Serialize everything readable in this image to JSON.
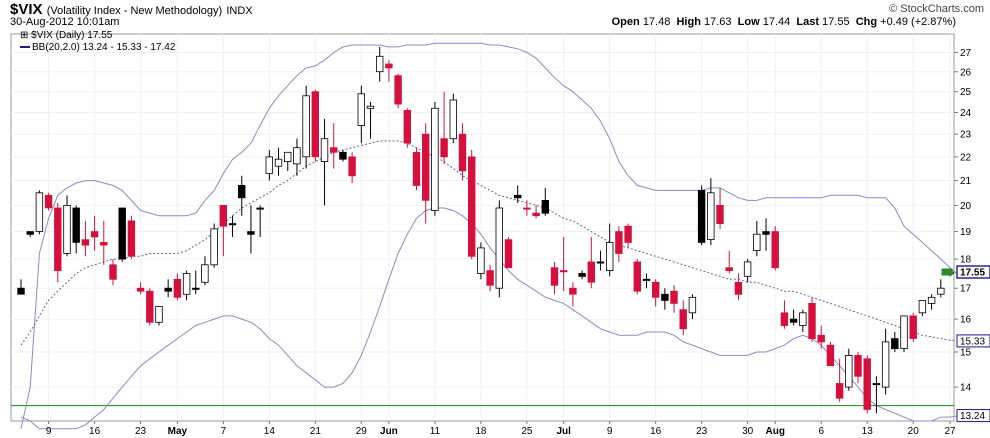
{
  "header": {
    "symbol": "$VIX",
    "name": "(Volatility Index - New Methodology)",
    "exchange": "INDX",
    "timestamp": "30-Aug-2012 10:01am",
    "watermark": "© StockCharts.com",
    "open_label": "Open",
    "open": "17.48",
    "high_label": "High",
    "high": "17.63",
    "low_label": "Low",
    "low": "17.44",
    "last_label": "Last",
    "last": "17.55",
    "chg_label": "Chg",
    "chg": "+0.49 (+2.87%)"
  },
  "legend": {
    "line1": "$VIX (Daily) 17.55",
    "line2": "BB(20,2.0) 13.24 - 15.33 - 17.42"
  },
  "chart_data": {
    "type": "candlestick",
    "yscale": "log",
    "ylim": [
      13.1,
      28.0
    ],
    "yticks": [
      14,
      15,
      16,
      17,
      18,
      19,
      20,
      21,
      22,
      23,
      24,
      25,
      26,
      27
    ],
    "xlabels": [
      "9",
      "16",
      "23",
      "May",
      "7",
      "14",
      "21",
      "29",
      "Jun",
      "11",
      "18",
      "25",
      "Jul",
      "9",
      "16",
      "23",
      "30",
      "Aug",
      "6",
      "13",
      "20",
      "27"
    ],
    "xlabels_bold": [
      "May",
      "Jun",
      "Jul",
      "Aug"
    ],
    "last_value_box": "17.55",
    "bb_mid_box": "15.33",
    "bb_low_box": "13.24",
    "colors": {
      "up_fill": "#ffffff",
      "down_fill": "#d5103c",
      "black_fill": "#000000",
      "band": "#8a8ac8",
      "mid": "#6060b0",
      "hline": "#118811",
      "box": "#1a1a8c"
    },
    "horizontal_line": 13.5,
    "candles": [
      {
        "o": 17.0,
        "h": 17.3,
        "l": 16.8,
        "c": 16.8,
        "k": "b"
      },
      {
        "o": 18.9,
        "h": 19.0,
        "l": 18.8,
        "c": 19.0,
        "k": "b"
      },
      {
        "o": 19.0,
        "h": 20.6,
        "l": 18.9,
        "c": 20.5,
        "k": "u"
      },
      {
        "o": 20.4,
        "h": 20.5,
        "l": 19.8,
        "c": 19.9,
        "k": "d"
      },
      {
        "o": 19.9,
        "h": 20.1,
        "l": 17.2,
        "c": 17.6,
        "k": "d"
      },
      {
        "o": 18.2,
        "h": 20.4,
        "l": 18.1,
        "c": 20.0,
        "k": "u"
      },
      {
        "o": 19.9,
        "h": 20.0,
        "l": 18.2,
        "c": 18.6,
        "k": "b"
      },
      {
        "o": 18.7,
        "h": 19.4,
        "l": 18.1,
        "c": 18.5,
        "k": "d"
      },
      {
        "o": 19.0,
        "h": 19.6,
        "l": 18.3,
        "c": 18.8,
        "k": "d"
      },
      {
        "o": 18.6,
        "h": 19.4,
        "l": 17.8,
        "c": 18.5,
        "k": "d"
      },
      {
        "o": 17.8,
        "h": 18.0,
        "l": 17.1,
        "c": 17.3,
        "k": "d"
      },
      {
        "o": 18.0,
        "h": 19.9,
        "l": 17.9,
        "c": 19.9,
        "k": "b"
      },
      {
        "o": 19.4,
        "h": 19.6,
        "l": 18.0,
        "c": 18.1,
        "k": "d"
      },
      {
        "o": 17.0,
        "h": 17.2,
        "l": 16.8,
        "c": 16.9,
        "k": "d"
      },
      {
        "o": 16.9,
        "h": 17.0,
        "l": 15.8,
        "c": 15.9,
        "k": "d"
      },
      {
        "o": 15.9,
        "h": 16.4,
        "l": 15.8,
        "c": 16.4,
        "k": "u"
      },
      {
        "o": 17.0,
        "h": 17.3,
        "l": 16.7,
        "c": 16.9,
        "k": "b"
      },
      {
        "o": 17.3,
        "h": 17.5,
        "l": 16.6,
        "c": 16.7,
        "k": "d"
      },
      {
        "o": 16.8,
        "h": 17.6,
        "l": 16.6,
        "c": 17.5,
        "k": "u"
      },
      {
        "o": 17.0,
        "h": 17.6,
        "l": 16.8,
        "c": 17.0,
        "k": "b"
      },
      {
        "o": 17.2,
        "h": 18.1,
        "l": 17.1,
        "c": 17.8,
        "k": "u"
      },
      {
        "o": 17.8,
        "h": 19.3,
        "l": 17.7,
        "c": 19.1,
        "k": "u"
      },
      {
        "o": 19.2,
        "h": 20.0,
        "l": 18.1,
        "c": 20.0,
        "k": "d"
      },
      {
        "o": 19.3,
        "h": 19.6,
        "l": 18.8,
        "c": 19.3,
        "k": "b"
      },
      {
        "o": 20.3,
        "h": 21.2,
        "l": 19.6,
        "c": 20.8,
        "k": "b"
      },
      {
        "o": 19.0,
        "h": 20.0,
        "l": 18.2,
        "c": 18.9,
        "k": "b"
      },
      {
        "o": 19.9,
        "h": 20.0,
        "l": 18.8,
        "c": 19.9,
        "k": "b"
      },
      {
        "o": 21.3,
        "h": 22.3,
        "l": 21.0,
        "c": 22.0,
        "k": "u"
      },
      {
        "o": 21.6,
        "h": 22.4,
        "l": 21.2,
        "c": 21.9,
        "k": "u"
      },
      {
        "o": 21.8,
        "h": 22.2,
        "l": 21.4,
        "c": 22.2,
        "k": "u"
      },
      {
        "o": 21.7,
        "h": 22.8,
        "l": 21.2,
        "c": 22.4,
        "k": "u"
      },
      {
        "o": 22.0,
        "h": 25.3,
        "l": 21.5,
        "c": 24.8,
        "k": "u"
      },
      {
        "o": 25.0,
        "h": 25.1,
        "l": 21.8,
        "c": 22.0,
        "k": "d"
      },
      {
        "o": 22.8,
        "h": 23.7,
        "l": 20.0,
        "c": 21.8,
        "k": "u"
      },
      {
        "o": 22.4,
        "h": 23.5,
        "l": 21.5,
        "c": 22.2,
        "k": "d"
      },
      {
        "o": 22.2,
        "h": 22.3,
        "l": 21.8,
        "c": 21.9,
        "k": "b"
      },
      {
        "o": 22.0,
        "h": 22.2,
        "l": 20.9,
        "c": 21.2,
        "k": "d"
      },
      {
        "o": 23.4,
        "h": 25.3,
        "l": 22.6,
        "c": 24.9,
        "k": "u"
      },
      {
        "o": 24.3,
        "h": 24.5,
        "l": 22.8,
        "c": 24.2,
        "k": "u"
      },
      {
        "o": 26.0,
        "h": 27.3,
        "l": 25.5,
        "c": 26.8,
        "k": "u"
      },
      {
        "o": 26.4,
        "h": 26.6,
        "l": 25.5,
        "c": 26.2,
        "k": "d"
      },
      {
        "o": 25.8,
        "h": 25.9,
        "l": 24.2,
        "c": 24.4,
        "k": "d"
      },
      {
        "o": 24.1,
        "h": 24.2,
        "l": 22.4,
        "c": 22.6,
        "k": "d"
      },
      {
        "o": 22.2,
        "h": 22.4,
        "l": 20.6,
        "c": 20.8,
        "k": "d"
      },
      {
        "o": 23.0,
        "h": 23.5,
        "l": 19.3,
        "c": 20.2,
        "k": "d"
      },
      {
        "o": 19.8,
        "h": 24.5,
        "l": 19.6,
        "c": 24.2,
        "k": "u"
      },
      {
        "o": 22.8,
        "h": 25.0,
        "l": 21.7,
        "c": 22.0,
        "k": "d"
      },
      {
        "o": 22.8,
        "h": 24.9,
        "l": 22.6,
        "c": 24.6,
        "k": "u"
      },
      {
        "o": 23.0,
        "h": 23.5,
        "l": 21.0,
        "c": 21.4,
        "k": "d"
      },
      {
        "o": 22.0,
        "h": 22.3,
        "l": 18.0,
        "c": 18.1,
        "k": "d"
      },
      {
        "o": 18.4,
        "h": 18.6,
        "l": 17.3,
        "c": 17.5,
        "k": "u"
      },
      {
        "o": 17.6,
        "h": 17.8,
        "l": 16.9,
        "c": 17.1,
        "k": "d"
      },
      {
        "o": 17.0,
        "h": 20.2,
        "l": 16.7,
        "c": 19.9,
        "k": "u"
      },
      {
        "o": 18.7,
        "h": 18.8,
        "l": 17.7,
        "c": 17.7,
        "k": "d"
      },
      {
        "o": 20.3,
        "h": 20.8,
        "l": 20.1,
        "c": 20.4,
        "k": "b"
      },
      {
        "o": 19.9,
        "h": 20.2,
        "l": 19.6,
        "c": 19.9,
        "k": "d"
      },
      {
        "o": 19.7,
        "h": 20.0,
        "l": 19.5,
        "c": 19.6,
        "k": "d"
      },
      {
        "o": 20.2,
        "h": 20.7,
        "l": 19.6,
        "c": 19.7,
        "k": "b"
      },
      {
        "o": 17.7,
        "h": 17.9,
        "l": 16.8,
        "c": 17.1,
        "k": "d"
      },
      {
        "o": 17.6,
        "h": 18.8,
        "l": 16.9,
        "c": 17.6,
        "k": "d"
      },
      {
        "o": 17.0,
        "h": 17.2,
        "l": 16.4,
        "c": 16.8,
        "k": "d"
      },
      {
        "o": 17.4,
        "h": 17.6,
        "l": 17.3,
        "c": 17.5,
        "k": "b"
      },
      {
        "o": 17.9,
        "h": 18.8,
        "l": 17.0,
        "c": 17.2,
        "k": "d"
      },
      {
        "o": 17.9,
        "h": 18.3,
        "l": 17.6,
        "c": 17.9,
        "k": "b"
      },
      {
        "o": 17.6,
        "h": 19.3,
        "l": 17.4,
        "c": 18.6,
        "k": "u"
      },
      {
        "o": 19.0,
        "h": 19.2,
        "l": 17.9,
        "c": 18.2,
        "k": "d"
      },
      {
        "o": 19.2,
        "h": 19.3,
        "l": 18.4,
        "c": 18.6,
        "k": "d"
      },
      {
        "o": 17.9,
        "h": 18.0,
        "l": 16.8,
        "c": 16.9,
        "k": "d"
      },
      {
        "o": 17.3,
        "h": 17.5,
        "l": 17.0,
        "c": 17.3,
        "k": "b"
      },
      {
        "o": 17.2,
        "h": 17.3,
        "l": 16.4,
        "c": 16.7,
        "k": "d"
      },
      {
        "o": 16.6,
        "h": 17.0,
        "l": 16.3,
        "c": 16.8,
        "k": "b"
      },
      {
        "o": 16.9,
        "h": 17.1,
        "l": 16.2,
        "c": 16.5,
        "k": "d"
      },
      {
        "o": 16.3,
        "h": 16.6,
        "l": 15.5,
        "c": 15.7,
        "k": "d"
      },
      {
        "o": 16.2,
        "h": 16.8,
        "l": 16.0,
        "c": 16.7,
        "k": "u"
      },
      {
        "o": 20.6,
        "h": 20.8,
        "l": 18.5,
        "c": 18.6,
        "k": "b"
      },
      {
        "o": 18.7,
        "h": 21.1,
        "l": 18.5,
        "c": 20.5,
        "k": "u"
      },
      {
        "o": 20.0,
        "h": 20.7,
        "l": 19.1,
        "c": 19.3,
        "k": "d"
      },
      {
        "o": 17.7,
        "h": 18.3,
        "l": 17.5,
        "c": 17.6,
        "k": "d"
      },
      {
        "o": 17.2,
        "h": 17.5,
        "l": 16.6,
        "c": 16.8,
        "k": "d"
      },
      {
        "o": 17.4,
        "h": 18.0,
        "l": 17.2,
        "c": 17.9,
        "k": "u"
      },
      {
        "o": 18.3,
        "h": 19.4,
        "l": 18.1,
        "c": 18.9,
        "k": "u"
      },
      {
        "o": 19.0,
        "h": 19.5,
        "l": 18.3,
        "c": 18.9,
        "k": "b"
      },
      {
        "o": 19.0,
        "h": 19.2,
        "l": 17.6,
        "c": 17.7,
        "k": "d"
      },
      {
        "o": 16.2,
        "h": 16.6,
        "l": 15.7,
        "c": 15.8,
        "k": "d"
      },
      {
        "o": 16.0,
        "h": 16.3,
        "l": 15.8,
        "c": 15.9,
        "k": "b"
      },
      {
        "o": 15.8,
        "h": 16.3,
        "l": 15.6,
        "c": 16.2,
        "k": "u"
      },
      {
        "o": 16.5,
        "h": 16.7,
        "l": 15.3,
        "c": 15.4,
        "k": "d"
      },
      {
        "o": 15.5,
        "h": 15.8,
        "l": 15.1,
        "c": 15.3,
        "k": "d"
      },
      {
        "o": 15.2,
        "h": 15.3,
        "l": 14.6,
        "c": 14.6,
        "k": "d"
      },
      {
        "o": 14.1,
        "h": 14.8,
        "l": 13.6,
        "c": 13.7,
        "k": "d"
      },
      {
        "o": 14.0,
        "h": 15.1,
        "l": 13.9,
        "c": 14.9,
        "k": "u"
      },
      {
        "o": 14.9,
        "h": 15.0,
        "l": 14.1,
        "c": 14.3,
        "k": "d"
      },
      {
        "o": 14.8,
        "h": 14.9,
        "l": 13.3,
        "c": 13.4,
        "k": "d"
      },
      {
        "o": 14.1,
        "h": 14.3,
        "l": 13.3,
        "c": 14.1,
        "k": "b"
      },
      {
        "o": 14.0,
        "h": 15.7,
        "l": 13.8,
        "c": 15.3,
        "k": "u"
      },
      {
        "o": 15.4,
        "h": 15.6,
        "l": 15.0,
        "c": 15.1,
        "k": "b"
      },
      {
        "o": 15.1,
        "h": 16.1,
        "l": 15.0,
        "c": 16.1,
        "k": "u"
      },
      {
        "o": 16.1,
        "h": 16.2,
        "l": 15.3,
        "c": 15.4,
        "k": "d"
      },
      {
        "o": 16.2,
        "h": 16.6,
        "l": 16.1,
        "c": 16.6,
        "k": "u"
      },
      {
        "o": 16.5,
        "h": 16.8,
        "l": 16.3,
        "c": 16.7,
        "k": "u"
      },
      {
        "o": 16.8,
        "h": 17.3,
        "l": 16.7,
        "c": 17.0,
        "k": "u"
      },
      {
        "o": 17.5,
        "h": 17.6,
        "l": 17.4,
        "c": 17.55,
        "k": "u"
      }
    ],
    "bb_upper": [
      12.6,
      14.0,
      18.2,
      19.5,
      20.4,
      20.7,
      20.9,
      21.0,
      21.0,
      20.9,
      20.8,
      20.6,
      20.2,
      19.8,
      19.7,
      19.6,
      19.6,
      19.6,
      19.6,
      19.7,
      20.2,
      20.6,
      21.3,
      21.9,
      22.2,
      22.6,
      23.4,
      24.2,
      24.8,
      25.3,
      25.8,
      26.2,
      26.3,
      26.6,
      27.0,
      27.3,
      27.4,
      27.4,
      27.4,
      27.4,
      27.3,
      27.3,
      27.4,
      27.4,
      27.4,
      27.5,
      27.5,
      27.5,
      27.5,
      27.5,
      27.5,
      27.4,
      27.4,
      27.3,
      27.2,
      27.0,
      26.7,
      26.2,
      25.7,
      25.3,
      25.0,
      24.6,
      24.2,
      23.6,
      22.8,
      21.8,
      21.2,
      20.8,
      20.7,
      20.6,
      20.6,
      20.6,
      20.6,
      20.6,
      20.6,
      20.7,
      20.7,
      20.5,
      20.3,
      20.2,
      20.2,
      20.3,
      20.3,
      20.3,
      20.3,
      20.3,
      20.3,
      20.3,
      20.4,
      20.4,
      20.4,
      20.4,
      20.3,
      20.3,
      20.3,
      19.9,
      19.2,
      18.9,
      18.6,
      18.3,
      18.0,
      17.7,
      17.42
    ],
    "bb_mid": [
      15.2,
      15.6,
      16.1,
      16.6,
      16.9,
      17.2,
      17.5,
      17.7,
      17.8,
      17.9,
      18.0,
      18.0,
      18.1,
      18.1,
      18.2,
      18.2,
      18.2,
      18.2,
      18.3,
      18.5,
      18.7,
      19.0,
      19.3,
      19.6,
      19.9,
      20.1,
      20.3,
      20.5,
      20.8,
      21.0,
      21.3,
      21.6,
      21.8,
      22.0,
      22.2,
      22.3,
      22.4,
      22.5,
      22.6,
      22.7,
      22.7,
      22.7,
      22.6,
      22.4,
      22.2,
      22.0,
      21.8,
      21.5,
      21.2,
      21.0,
      20.8,
      20.6,
      20.4,
      20.3,
      20.2,
      20.1,
      20.0,
      19.9,
      19.7,
      19.5,
      19.4,
      19.2,
      19.0,
      18.8,
      18.6,
      18.5,
      18.4,
      18.3,
      18.2,
      18.1,
      18.0,
      17.9,
      17.8,
      17.7,
      17.6,
      17.5,
      17.4,
      17.3,
      17.3,
      17.2,
      17.2,
      17.1,
      17.0,
      16.9,
      16.9,
      16.8,
      16.7,
      16.6,
      16.5,
      16.4,
      16.3,
      16.2,
      16.1,
      16.0,
      15.9,
      15.8,
      15.7,
      15.6,
      15.5,
      15.45,
      15.4,
      15.35,
      15.33
    ],
    "bb_lower": [
      13.2,
      13.1,
      12.9,
      12.8,
      12.8,
      12.8,
      12.9,
      13.0,
      13.2,
      13.4,
      13.7,
      14.0,
      14.3,
      14.6,
      14.8,
      15.0,
      15.2,
      15.4,
      15.6,
      15.8,
      15.9,
      16.0,
      16.1,
      16.1,
      16.0,
      15.9,
      15.7,
      15.4,
      15.2,
      14.9,
      14.6,
      14.4,
      14.2,
      14.0,
      14.0,
      14.1,
      14.4,
      14.9,
      15.6,
      16.4,
      17.3,
      18.2,
      18.9,
      19.5,
      19.8,
      19.9,
      19.9,
      19.8,
      19.6,
      19.3,
      18.9,
      18.4,
      18.0,
      17.6,
      17.3,
      17.1,
      16.9,
      16.7,
      16.6,
      16.5,
      16.3,
      16.1,
      15.9,
      15.7,
      15.6,
      15.5,
      15.5,
      15.5,
      15.6,
      15.6,
      15.6,
      15.5,
      15.3,
      15.2,
      15.1,
      15.0,
      14.9,
      14.9,
      14.9,
      14.9,
      15.0,
      15.0,
      15.1,
      15.2,
      15.4,
      15.5,
      15.4,
      15.2,
      14.9,
      14.6,
      14.3,
      14.0,
      13.7,
      13.5,
      13.4,
      13.3,
      13.2,
      13.1,
      13.1,
      13.1,
      13.2,
      13.2,
      13.24
    ]
  }
}
